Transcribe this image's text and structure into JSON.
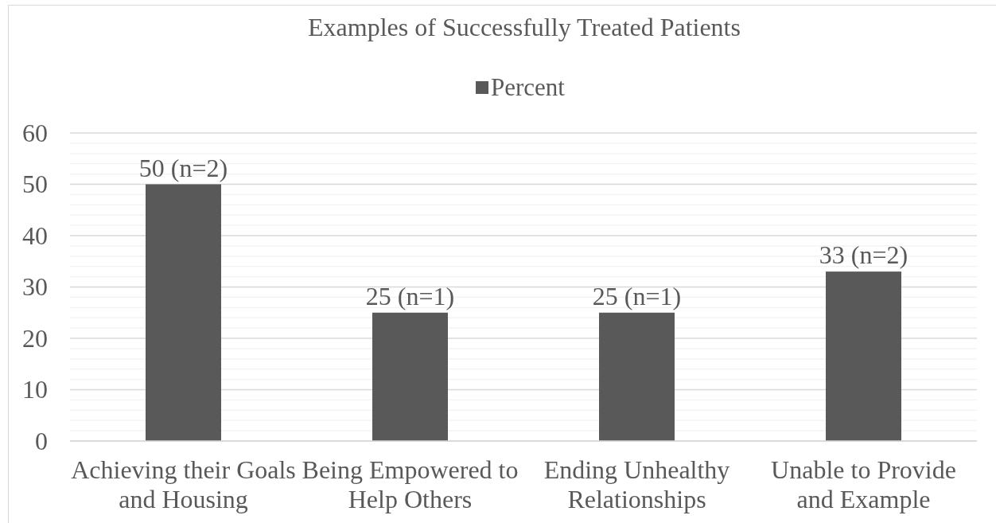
{
  "chart_data": {
    "type": "bar",
    "title": "Examples of Successfully Treated Patients",
    "categories": [
      "Achieving their Goals and Housing",
      "Being Empowered to Help Others",
      "Ending Unhealthy Relationships",
      "Unable to Provide and Example"
    ],
    "series": [
      {
        "name": "Percent",
        "color": "#595959",
        "values": [
          50,
          25,
          25,
          33
        ],
        "value_labels": [
          "50 (n=2)",
          "25 (n=1)",
          "25 (n=1)",
          "33 (n=2)"
        ]
      }
    ],
    "ylim": [
      0,
      60
    ],
    "yticks": [
      0,
      {
        "value": 2,
        "label": null
      },
      {
        "value": 4,
        "label": null
      },
      {
        "value": 6,
        "label": null
      },
      {
        "value": 8,
        "label": null
      },
      10,
      {
        "value": 12,
        "label": null
      },
      {
        "value": 14,
        "label": null
      },
      {
        "value": 16,
        "label": null
      },
      {
        "value": 18,
        "label": null
      },
      20,
      {
        "value": 22,
        "label": null
      },
      {
        "value": 24,
        "label": null
      },
      {
        "value": 26,
        "label": null
      },
      {
        "value": 28,
        "label": null
      },
      30,
      {
        "value": 32,
        "label": null
      },
      {
        "value": 34,
        "label": null
      },
      {
        "value": 36,
        "label": null
      },
      {
        "value": 38,
        "label": null
      },
      40,
      {
        "value": 42,
        "label": null
      },
      {
        "value": 44,
        "label": null
      },
      {
        "value": 46,
        "label": null
      },
      {
        "value": 48,
        "label": null
      },
      50,
      {
        "value": 52,
        "label": null
      },
      {
        "value": 54,
        "label": null
      },
      {
        "value": 56,
        "label": null
      },
      {
        "value": 58,
        "label": null
      },
      60
    ],
    "grid": "y",
    "legend": "top"
  }
}
